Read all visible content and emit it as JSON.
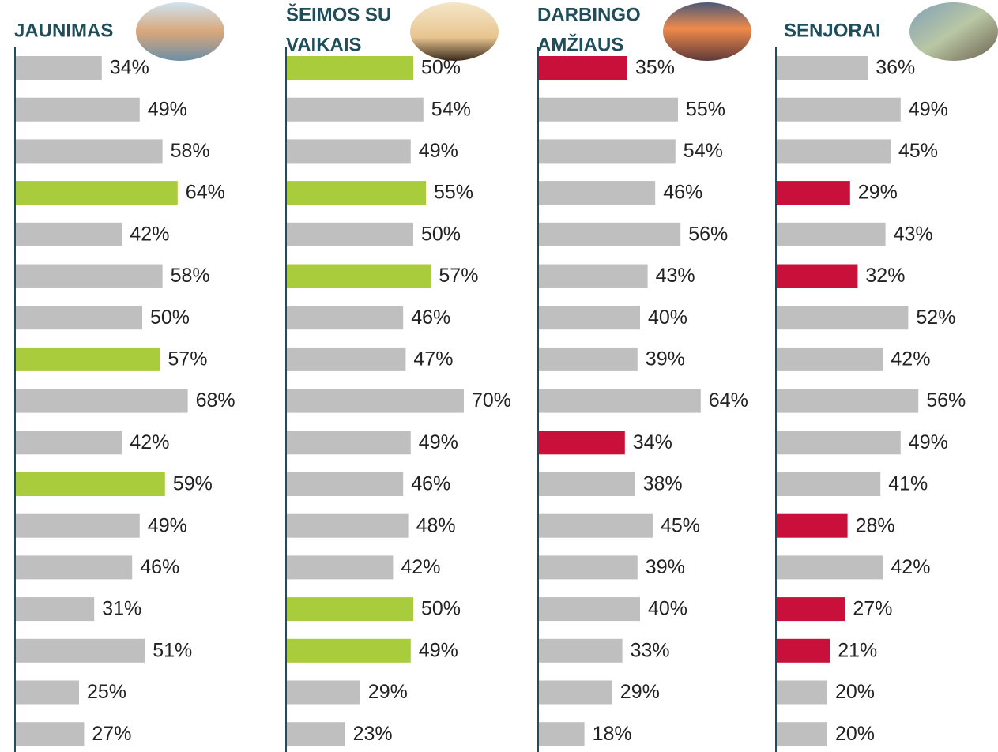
{
  "chart_data": [
    {
      "type": "bar",
      "orientation": "horizontal",
      "title": [
        "JAUNIMAS"
      ],
      "xlim": [
        0,
        100
      ],
      "values": [
        34,
        49,
        58,
        64,
        42,
        58,
        50,
        57,
        68,
        42,
        59,
        49,
        46,
        31,
        51,
        25,
        27
      ],
      "value_labels": [
        "34%",
        "49%",
        "58%",
        "64%",
        "42%",
        "58%",
        "50%",
        "57%",
        "68%",
        "42%",
        "59%",
        "49%",
        "46%",
        "31%",
        "51%",
        "25%",
        "27%"
      ],
      "colors": [
        "#bfbfbf",
        "#bfbfbf",
        "#bfbfbf",
        "#a9cc3c",
        "#bfbfbf",
        "#bfbfbf",
        "#bfbfbf",
        "#a9cc3c",
        "#bfbfbf",
        "#bfbfbf",
        "#a9cc3c",
        "#bfbfbf",
        "#bfbfbf",
        "#bfbfbf",
        "#bfbfbf",
        "#bfbfbf",
        "#bfbfbf"
      ]
    },
    {
      "type": "bar",
      "orientation": "horizontal",
      "title": [
        "ŠEIMOS SU",
        "VAIKAIS"
      ],
      "xlim": [
        0,
        100
      ],
      "values": [
        50,
        54,
        49,
        55,
        50,
        57,
        46,
        47,
        70,
        49,
        46,
        48,
        42,
        50,
        49,
        29,
        23
      ],
      "value_labels": [
        "50%",
        "54%",
        "49%",
        "55%",
        "50%",
        "57%",
        "46%",
        "47%",
        "70%",
        "49%",
        "46%",
        "48%",
        "42%",
        "50%",
        "49%",
        "29%",
        "23%"
      ],
      "colors": [
        "#a9cc3c",
        "#bfbfbf",
        "#bfbfbf",
        "#a9cc3c",
        "#bfbfbf",
        "#a9cc3c",
        "#bfbfbf",
        "#bfbfbf",
        "#bfbfbf",
        "#bfbfbf",
        "#bfbfbf",
        "#bfbfbf",
        "#bfbfbf",
        "#a9cc3c",
        "#a9cc3c",
        "#bfbfbf",
        "#bfbfbf"
      ]
    },
    {
      "type": "bar",
      "orientation": "horizontal",
      "title": [
        "DARBINGO",
        "AMŽIAUS"
      ],
      "xlim": [
        0,
        100
      ],
      "values": [
        35,
        55,
        54,
        46,
        56,
        43,
        40,
        39,
        64,
        34,
        38,
        45,
        39,
        40,
        33,
        29,
        18
      ],
      "value_labels": [
        "35%",
        "55%",
        "54%",
        "46%",
        "56%",
        "43%",
        "40%",
        "39%",
        "64%",
        "34%",
        "38%",
        "45%",
        "39%",
        "40%",
        "33%",
        "29%",
        "18%"
      ],
      "colors": [
        "#c8103a",
        "#bfbfbf",
        "#bfbfbf",
        "#bfbfbf",
        "#bfbfbf",
        "#bfbfbf",
        "#bfbfbf",
        "#bfbfbf",
        "#bfbfbf",
        "#c8103a",
        "#bfbfbf",
        "#bfbfbf",
        "#bfbfbf",
        "#bfbfbf",
        "#bfbfbf",
        "#bfbfbf",
        "#bfbfbf"
      ]
    },
    {
      "type": "bar",
      "orientation": "horizontal",
      "title": [
        "SENJORAI"
      ],
      "xlim": [
        0,
        100
      ],
      "values": [
        36,
        49,
        45,
        29,
        43,
        32,
        52,
        42,
        56,
        49,
        41,
        28,
        42,
        27,
        21,
        20,
        20
      ],
      "value_labels": [
        "36%",
        "49%",
        "45%",
        "29%",
        "43%",
        "32%",
        "52%",
        "42%",
        "56%",
        "49%",
        "41%",
        "28%",
        "42%",
        "27%",
        "21%",
        "20%",
        "20%"
      ],
      "colors": [
        "#bfbfbf",
        "#bfbfbf",
        "#bfbfbf",
        "#c8103a",
        "#bfbfbf",
        "#c8103a",
        "#bfbfbf",
        "#bfbfbf",
        "#bfbfbf",
        "#bfbfbf",
        "#bfbfbf",
        "#c8103a",
        "#bfbfbf",
        "#c8103a",
        "#c8103a",
        "#bfbfbf",
        "#bfbfbf"
      ]
    }
  ]
}
